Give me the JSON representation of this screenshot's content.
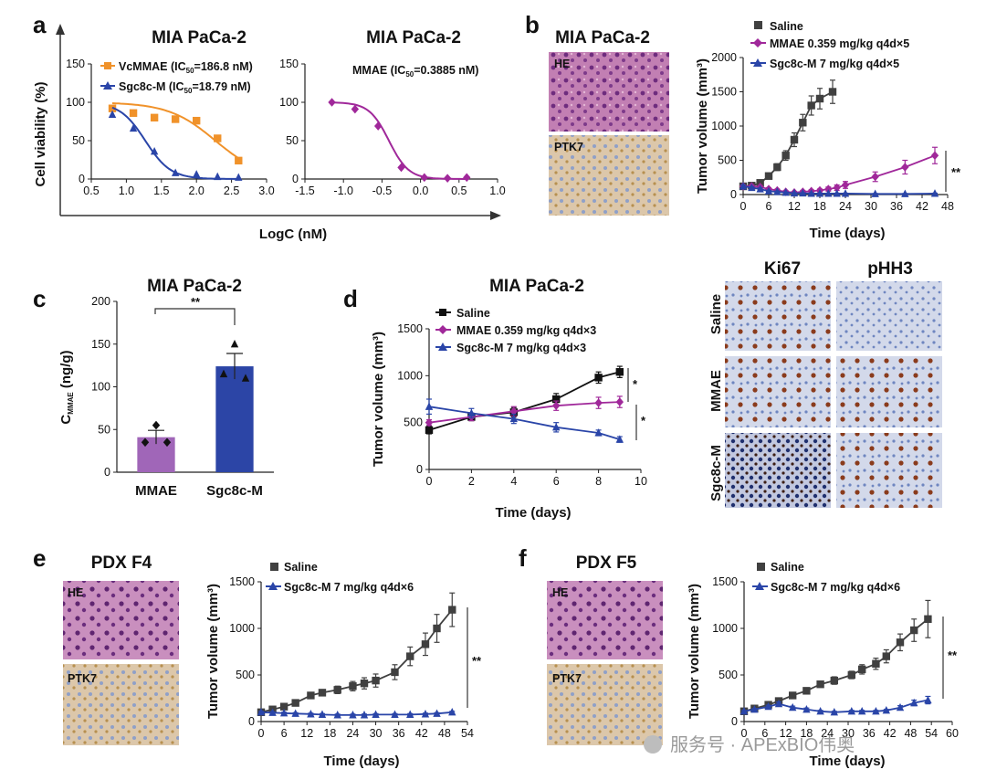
{
  "panel_letters": [
    "a",
    "b",
    "c",
    "d",
    "e",
    "f"
  ],
  "colors": {
    "saline": "#404040",
    "mmae": "#a0289a",
    "sgc8c": "#2a45a8",
    "vcmmae": "#f0922a",
    "bar_mmae": "#a066b8",
    "bar_sgc": "#2c45a6",
    "he_tissue": "#c27fb3",
    "ptk7_tissue": "#d9c3a5",
    "ihc_tissue": "#cfd5e6"
  },
  "panel_a": {
    "title_left": "MIA PaCa-2",
    "title_right": "MIA PaCa-2",
    "ylabel": "Cell viability (%)",
    "xlabel": "LogC (nM)",
    "legend_vc": "VcMMAE (IC",
    "legend_vc_val": "=186.8 nM)",
    "legend_sgc": "Sgc8c-M (IC",
    "legend_sgc_val": "=18.79 nM)",
    "ic_sub": "50",
    "mmae_label": "MMAE (IC",
    "mmae_label_val": "=0.3885 nM)"
  },
  "panel_b": {
    "title": "MIA PaCa-2",
    "he": "HE",
    "ptk7": "PTK7",
    "legend": [
      "Saline",
      "MMAE 0.359 mg/kg q4d×5",
      "Sgc8c-M 7 mg/kg q4d×5"
    ],
    "sig": "**"
  },
  "panel_c": {
    "title": "MIA PaCa-2",
    "ylabel_main": "C",
    "ylabel_sub": "MMAE",
    "ylabel_unit": " (ng/g)",
    "sig": "**"
  },
  "panel_d": {
    "title": "MIA PaCa-2",
    "legend": [
      "Saline",
      "MMAE 0.359 mg/kg q4d×3",
      "Sgc8c-M 7 mg/kg q4d×3"
    ],
    "sig1": "*",
    "sig2": "*",
    "ihc_cols": [
      "Ki67",
      "pHH3"
    ],
    "ihc_rows": [
      "Saline",
      "MMAE",
      "Sgc8c-M"
    ]
  },
  "panel_e": {
    "title": "PDX F4",
    "he": "HE",
    "ptk7": "PTK7",
    "legend": [
      "Saline",
      "Sgc8c-M 7 mg/kg q4d×6"
    ],
    "sig": "**"
  },
  "panel_f": {
    "title": "PDX F5",
    "he": "HE",
    "ptk7": "PTK7",
    "legend": [
      "Saline",
      "Sgc8c-M 7 mg/kg q4d×6"
    ],
    "sig": "**"
  },
  "watermark": "服务号 · APExBIO伟奥",
  "chart_data": [
    {
      "type": "scatter",
      "id": "a_left",
      "title": "MIA PaCa-2",
      "xlabel": "LogC (nM)",
      "ylabel": "Cell viability (%)",
      "xlim": [
        0.5,
        3.0
      ],
      "ylim": [
        0,
        150
      ],
      "xticks": [
        "0.5",
        "1.0",
        "1.5",
        "2.0",
        "2.5",
        "3.0"
      ],
      "yticks": [
        "0",
        "50",
        "100",
        "150"
      ],
      "series": [
        {
          "name": "VcMMAE (IC50=186.8 nM)",
          "x": [
            0.8,
            1.1,
            1.4,
            1.7,
            2.0,
            2.3,
            2.6
          ],
          "y": [
            92,
            86,
            80,
            78,
            76,
            53,
            24
          ]
        },
        {
          "name": "Sgc8c-M (IC50=18.79 nM)",
          "x": [
            0.8,
            1.1,
            1.4,
            1.7,
            2.0,
            2.3,
            2.6
          ],
          "y": [
            84,
            66,
            36,
            8,
            6,
            3,
            2
          ]
        }
      ]
    },
    {
      "type": "scatter",
      "id": "a_right",
      "title": "MIA PaCa-2",
      "xlabel": "LogC (nM)",
      "ylabel": "",
      "xlim": [
        -1.5,
        1.0
      ],
      "ylim": [
        0,
        150
      ],
      "xticks": [
        "-1.5",
        "-1.0",
        "-0.5",
        "0.0",
        "0.5",
        "1.0"
      ],
      "yticks": [
        "0",
        "50",
        "100",
        "150"
      ],
      "series": [
        {
          "name": "MMAE (IC50=0.3885 nM)",
          "x": [
            -1.15,
            -0.85,
            -0.55,
            -0.25,
            0.05,
            0.35,
            0.6
          ],
          "y": [
            100,
            91,
            69,
            15,
            2,
            1,
            2
          ]
        }
      ]
    },
    {
      "type": "line",
      "id": "b",
      "xlabel": "Time (days)",
      "ylabel": "Tumor volume (mm³)",
      "xlim": [
        0,
        48
      ],
      "ylim": [
        0,
        2000
      ],
      "xticks": [
        "0",
        "6",
        "12",
        "18",
        "24",
        "30",
        "36",
        "42",
        "48"
      ],
      "yticks": [
        "0",
        "500",
        "1000",
        "1500",
        "2000"
      ],
      "series": [
        {
          "name": "Saline",
          "x": [
            0,
            2,
            4,
            6,
            8,
            10,
            12,
            14,
            16,
            18,
            21
          ],
          "y": [
            120,
            130,
            170,
            270,
            400,
            570,
            800,
            1050,
            1300,
            1400,
            1500
          ],
          "err": [
            20,
            20,
            30,
            40,
            50,
            70,
            100,
            120,
            140,
            150,
            170
          ]
        },
        {
          "name": "MMAE 0.359 mg/kg q4d×5",
          "x": [
            0,
            2,
            4,
            6,
            8,
            10,
            12,
            14,
            16,
            18,
            20,
            22,
            24,
            31,
            38,
            45
          ],
          "y": [
            120,
            120,
            110,
            80,
            60,
            40,
            30,
            40,
            50,
            60,
            80,
            100,
            140,
            260,
            400,
            570
          ],
          "err": [
            20,
            20,
            20,
            20,
            20,
            15,
            15,
            20,
            20,
            20,
            30,
            40,
            50,
            70,
            100,
            120
          ]
        },
        {
          "name": "Sgc8c-M 7 mg/kg q4d×5",
          "x": [
            0,
            2,
            4,
            6,
            8,
            10,
            12,
            14,
            16,
            18,
            20,
            22,
            24,
            31,
            38,
            45
          ],
          "y": [
            120,
            100,
            80,
            50,
            40,
            30,
            20,
            20,
            15,
            15,
            15,
            15,
            15,
            10,
            10,
            15
          ],
          "err": [
            20,
            15,
            15,
            10,
            10,
            5,
            5,
            5,
            5,
            5,
            5,
            5,
            5,
            5,
            5,
            5
          ]
        }
      ]
    },
    {
      "type": "bar",
      "id": "c",
      "title": "MIA PaCa-2",
      "ylabel": "C MMAE (ng/g)",
      "ylim": [
        0,
        200
      ],
      "yticks": [
        "0",
        "50",
        "100",
        "150",
        "200"
      ],
      "categories": [
        "MMAE",
        "Sgc8c-M"
      ],
      "values": [
        41,
        124
      ],
      "err": [
        8,
        15
      ],
      "points": [
        [
          55,
          35,
          35
        ],
        [
          150,
          115,
          110
        ]
      ]
    },
    {
      "type": "line",
      "id": "d",
      "title": "MIA PaCa-2",
      "xlabel": "Time (days)",
      "ylabel": "Tumor volume (mm³)",
      "xlim": [
        0,
        10
      ],
      "ylim": [
        0,
        1500
      ],
      "xticks": [
        "0",
        "2",
        "4",
        "6",
        "8",
        "10"
      ],
      "yticks": [
        "0",
        "500",
        "1000",
        "1500"
      ],
      "series": [
        {
          "name": "Saline",
          "x": [
            0,
            2,
            4,
            6,
            8,
            9
          ],
          "y": [
            420,
            560,
            610,
            750,
            980,
            1040
          ],
          "err": [
            40,
            40,
            50,
            60,
            60,
            60
          ]
        },
        {
          "name": "MMAE 0.359 mg/kg q4d×3",
          "x": [
            0,
            2,
            4,
            6,
            8,
            9
          ],
          "y": [
            500,
            560,
            620,
            680,
            710,
            720
          ],
          "err": [
            30,
            40,
            50,
            50,
            60,
            60
          ]
        },
        {
          "name": "Sgc8c-M 7 mg/kg q4d×3",
          "x": [
            0,
            2,
            4,
            6,
            8,
            9
          ],
          "y": [
            670,
            600,
            540,
            450,
            390,
            320
          ],
          "err": [
            80,
            50,
            50,
            50,
            30,
            30
          ]
        }
      ]
    },
    {
      "type": "line",
      "id": "e",
      "xlabel": "Time (days)",
      "ylabel": "Tumor volume (mm³)",
      "xlim": [
        0,
        54
      ],
      "ylim": [
        0,
        1500
      ],
      "xticks": [
        "0",
        "6",
        "12",
        "18",
        "24",
        "30",
        "36",
        "42",
        "48",
        "54"
      ],
      "yticks": [
        "0",
        "500",
        "1000",
        "1500"
      ],
      "series": [
        {
          "name": "Saline",
          "x": [
            0,
            3,
            6,
            9,
            13,
            16,
            20,
            24,
            27,
            30,
            35,
            39,
            43,
            46,
            50
          ],
          "y": [
            100,
            130,
            160,
            200,
            280,
            310,
            340,
            380,
            410,
            440,
            530,
            700,
            830,
            1000,
            1200
          ],
          "err": [
            20,
            20,
            20,
            30,
            30,
            30,
            40,
            50,
            60,
            70,
            80,
            100,
            120,
            150,
            180
          ]
        },
        {
          "name": "Sgc8c-M 7 mg/kg q4d×6",
          "x": [
            0,
            3,
            6,
            9,
            13,
            16,
            20,
            24,
            27,
            30,
            35,
            39,
            43,
            46,
            50
          ],
          "y": [
            100,
            95,
            90,
            85,
            80,
            75,
            70,
            70,
            70,
            75,
            75,
            75,
            80,
            85,
            100
          ],
          "err": [
            10,
            10,
            10,
            10,
            10,
            10,
            10,
            10,
            10,
            10,
            10,
            10,
            10,
            10,
            10
          ]
        }
      ]
    },
    {
      "type": "line",
      "id": "f",
      "xlabel": "Time (days)",
      "ylabel": "Tumor volume (mm³)",
      "xlim": [
        0,
        60
      ],
      "ylim": [
        0,
        1500
      ],
      "xticks": [
        "0",
        "6",
        "12",
        "18",
        "24",
        "30",
        "36",
        "42",
        "48",
        "54",
        "60"
      ],
      "yticks": [
        "0",
        "500",
        "1000",
        "1500"
      ],
      "series": [
        {
          "name": "Saline",
          "x": [
            0,
            3,
            7,
            10,
            14,
            18,
            22,
            26,
            31,
            34,
            38,
            41,
            45,
            49,
            53
          ],
          "y": [
            110,
            140,
            180,
            220,
            280,
            330,
            400,
            440,
            500,
            560,
            620,
            700,
            850,
            980,
            1100
          ],
          "err": [
            20,
            20,
            20,
            20,
            30,
            30,
            30,
            40,
            40,
            50,
            60,
            70,
            90,
            120,
            200
          ]
        },
        {
          "name": "Sgc8c-M 7 mg/kg q4d×6",
          "x": [
            0,
            3,
            7,
            10,
            14,
            18,
            22,
            26,
            31,
            34,
            38,
            41,
            45,
            49,
            53
          ],
          "y": [
            110,
            130,
            160,
            190,
            150,
            130,
            110,
            100,
            110,
            110,
            110,
            120,
            150,
            200,
            230
          ],
          "err": [
            10,
            10,
            15,
            20,
            15,
            15,
            10,
            10,
            10,
            10,
            10,
            10,
            20,
            30,
            40
          ]
        }
      ]
    }
  ]
}
